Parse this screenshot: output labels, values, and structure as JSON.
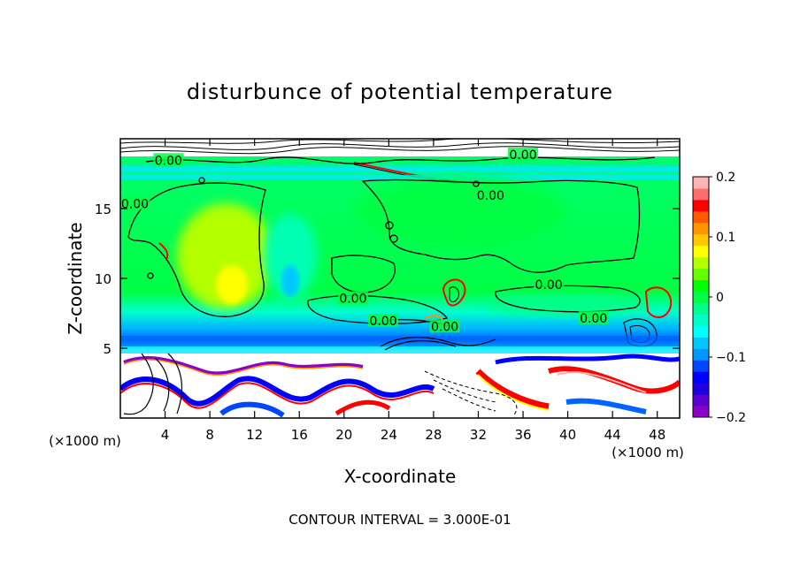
{
  "chart_data": {
    "type": "heatmap",
    "title": "disturbunce of potential temperature",
    "xlabel": "X-coordinate",
    "ylabel": "Z-coordinate",
    "x_unit": "(×1000 m)",
    "y_unit": "(×1000 m)",
    "xlim": [
      0,
      50
    ],
    "ylim": [
      0,
      20
    ],
    "x_ticks": [
      4,
      8,
      12,
      16,
      20,
      24,
      28,
      32,
      36,
      40,
      44,
      48
    ],
    "y_ticks": [
      5,
      10,
      15
    ],
    "colorbar": {
      "range": [
        -0.2,
        0.2
      ],
      "ticks": [
        {
          "value": 0.2,
          "label": "0.2"
        },
        {
          "value": 0.1,
          "label": "0.1"
        },
        {
          "value": 0,
          "label": "0"
        },
        {
          "value": -0.1,
          "label": "−0.1"
        },
        {
          "value": -0.2,
          "label": "−0.2"
        }
      ],
      "colors": [
        "#8c00c8",
        "#5a00d2",
        "#1e00dc",
        "#0000ff",
        "#0046ff",
        "#0096ff",
        "#00c8ff",
        "#00ffff",
        "#00ffc8",
        "#00ff8c",
        "#00ff46",
        "#00ff00",
        "#64ff00",
        "#b4ff00",
        "#ffff00",
        "#ffc800",
        "#ff9600",
        "#ff5a00",
        "#ff0000",
        "#ff6e6e",
        "#ffb4b4"
      ]
    },
    "contour_labels": [
      {
        "text": "0.00",
        "x": 4.3,
        "z": 18.4
      },
      {
        "text": "0.00",
        "x": 36.0,
        "z": 18.8
      },
      {
        "text": "0.00",
        "x": 1.3,
        "z": 15.3
      },
      {
        "text": "0.00",
        "x": 33.1,
        "z": 15.9
      },
      {
        "text": "0.00",
        "x": 38.3,
        "z": 9.5
      },
      {
        "text": "0.00",
        "x": 20.8,
        "z": 8.5
      },
      {
        "text": "0.00",
        "x": 23.5,
        "z": 6.9
      },
      {
        "text": "0.00",
        "x": 29.0,
        "z": 6.5
      },
      {
        "text": "0.00",
        "x": 42.3,
        "z": 7.1
      }
    ],
    "contour_interval_label": "CONTOUR INTERVAL = 3.000E-01"
  },
  "colors": {
    "background": "#ffffff",
    "field_base": "#00ff00",
    "contour": "#000000"
  }
}
